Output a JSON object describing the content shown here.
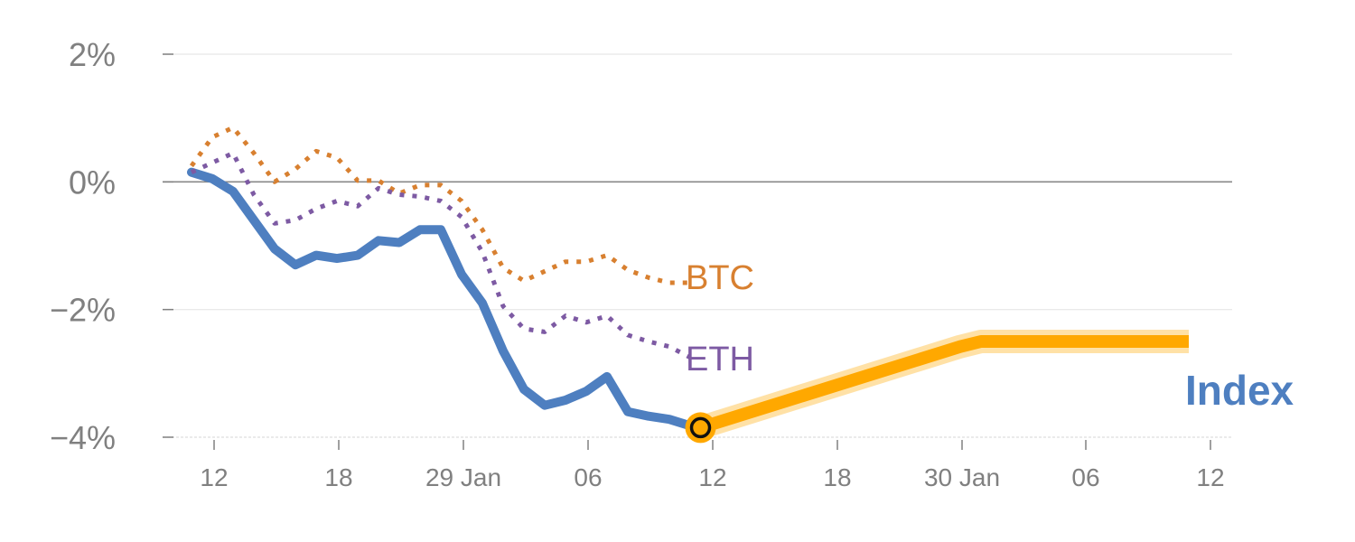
{
  "chart_data": {
    "type": "line",
    "title": "",
    "xlabel": "",
    "ylabel": "",
    "ylim": [
      -4,
      2
    ],
    "y_ticks": [
      2,
      0,
      -2,
      -4
    ],
    "y_tick_labels": [
      "2%",
      "0%",
      "−2%",
      "−4%"
    ],
    "x_tick_labels": [
      "12",
      "18",
      "29 Jan",
      "06",
      "12",
      "18",
      "30 Jan",
      "06",
      "12"
    ],
    "grid": "horizontal",
    "colors": {
      "Index": "#4e7fc0",
      "BTC": "#d88030",
      "ETH": "#7d5aa3",
      "forecast": "#ffa800",
      "zero_line": "#888888",
      "grid": "#e6e6e6",
      "tick_text": "#808080"
    },
    "series": [
      {
        "name": "Index",
        "style": "solid",
        "points": [
          [
            0.0,
            0.15
          ],
          [
            1.0,
            0.05
          ],
          [
            2.0,
            -0.15
          ],
          [
            3.0,
            -0.6
          ],
          [
            4.0,
            -1.05
          ],
          [
            5.0,
            -1.3
          ],
          [
            6.0,
            -1.15
          ],
          [
            7.0,
            -1.2
          ],
          [
            8.0,
            -1.15
          ],
          [
            9.0,
            -0.92
          ],
          [
            10.0,
            -0.95
          ],
          [
            11.0,
            -0.75
          ],
          [
            12.0,
            -0.75
          ],
          [
            13.0,
            -1.45
          ],
          [
            14.0,
            -1.9
          ],
          [
            15.0,
            -2.65
          ],
          [
            16.0,
            -3.25
          ],
          [
            17.0,
            -3.5
          ],
          [
            18.0,
            -3.42
          ],
          [
            19.0,
            -3.28
          ],
          [
            20.0,
            -3.05
          ],
          [
            21.0,
            -3.6
          ],
          [
            22.0,
            -3.67
          ],
          [
            23.0,
            -3.72
          ],
          [
            24.0,
            -3.82
          ]
        ]
      },
      {
        "name": "BTC",
        "style": "dotted",
        "points": [
          [
            0.0,
            0.25
          ],
          [
            1.0,
            0.7
          ],
          [
            2.0,
            0.85
          ],
          [
            3.0,
            0.45
          ],
          [
            4.0,
            0.0
          ],
          [
            5.0,
            0.2
          ],
          [
            6.0,
            0.48
          ],
          [
            7.0,
            0.38
          ],
          [
            8.0,
            0.02
          ],
          [
            9.0,
            0.02
          ],
          [
            10.0,
            -0.18
          ],
          [
            11.0,
            -0.05
          ],
          [
            12.0,
            -0.05
          ],
          [
            13.0,
            -0.3
          ],
          [
            14.0,
            -0.75
          ],
          [
            15.0,
            -1.35
          ],
          [
            16.0,
            -1.55
          ],
          [
            17.0,
            -1.4
          ],
          [
            18.0,
            -1.25
          ],
          [
            19.0,
            -1.25
          ],
          [
            20.0,
            -1.15
          ],
          [
            21.0,
            -1.38
          ],
          [
            22.0,
            -1.5
          ],
          [
            23.0,
            -1.58
          ],
          [
            24.0,
            -1.58
          ]
        ]
      },
      {
        "name": "ETH",
        "style": "dotted",
        "points": [
          [
            0.0,
            0.15
          ],
          [
            1.0,
            0.3
          ],
          [
            2.0,
            0.45
          ],
          [
            3.0,
            -0.2
          ],
          [
            4.0,
            -0.65
          ],
          [
            5.0,
            -0.6
          ],
          [
            6.0,
            -0.42
          ],
          [
            7.0,
            -0.3
          ],
          [
            8.0,
            -0.38
          ],
          [
            9.0,
            -0.1
          ],
          [
            10.0,
            -0.2
          ],
          [
            11.0,
            -0.23
          ],
          [
            12.0,
            -0.3
          ],
          [
            13.0,
            -0.55
          ],
          [
            14.0,
            -1.1
          ],
          [
            15.0,
            -1.95
          ],
          [
            16.0,
            -2.3
          ],
          [
            17.0,
            -2.35
          ],
          [
            18.0,
            -2.1
          ],
          [
            19.0,
            -2.2
          ],
          [
            20.0,
            -2.1
          ],
          [
            21.0,
            -2.4
          ],
          [
            22.0,
            -2.5
          ],
          [
            23.0,
            -2.58
          ],
          [
            24.0,
            -2.75
          ]
        ]
      },
      {
        "name": "Index",
        "style": "forecast",
        "points": [
          [
            24.5,
            -3.85
          ],
          [
            37.0,
            -2.58
          ],
          [
            38.0,
            -2.5
          ],
          [
            48.0,
            -2.5
          ]
        ]
      }
    ],
    "labels": {
      "btc": "BTC",
      "eth": "ETH",
      "index": "Index"
    },
    "marker": {
      "x": 24.5,
      "y": -3.85
    }
  }
}
